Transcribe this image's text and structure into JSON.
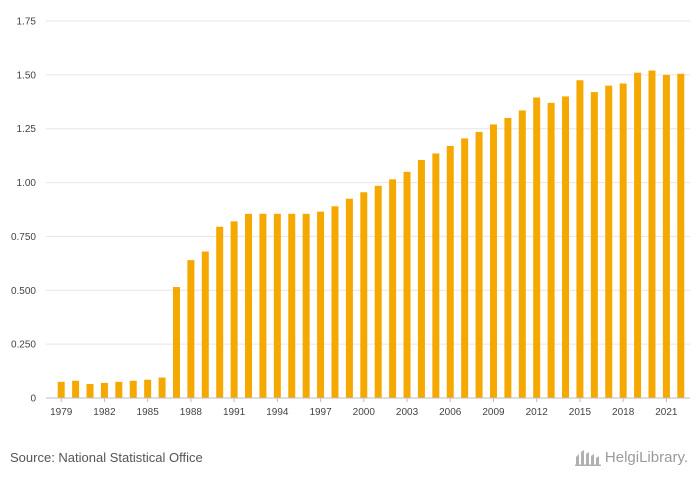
{
  "chart_data": {
    "type": "bar",
    "title": "",
    "xlabel": "",
    "ylabel": "",
    "ylim": [
      0,
      1.75
    ],
    "yticks": [
      "0",
      "0.250",
      "0.500",
      "0.750",
      "1.00",
      "1.25",
      "1.50",
      "1.75"
    ],
    "grid": true,
    "bar_color": "#f5a800",
    "categories": [
      "1979",
      "1980",
      "1981",
      "1982",
      "1983",
      "1984",
      "1985",
      "1986",
      "1987",
      "1988",
      "1989",
      "1990",
      "1991",
      "1992",
      "1993",
      "1994",
      "1995",
      "1996",
      "1997",
      "1998",
      "1999",
      "2000",
      "2001",
      "2002",
      "2003",
      "2004",
      "2005",
      "2006",
      "2007",
      "2008",
      "2009",
      "2010",
      "2011",
      "2012",
      "2013",
      "2014",
      "2015",
      "2016",
      "2017",
      "2018",
      "2019",
      "2020",
      "2021",
      "2022"
    ],
    "x_tick_labels": [
      "1979",
      "1982",
      "1985",
      "1988",
      "1991",
      "1994",
      "1997",
      "2000",
      "2003",
      "2006",
      "2009",
      "2012",
      "2015",
      "2018",
      "2021"
    ],
    "values": [
      0.075,
      0.08,
      0.065,
      0.07,
      0.075,
      0.08,
      0.085,
      0.095,
      0.515,
      0.64,
      0.68,
      0.795,
      0.82,
      0.855,
      0.855,
      0.855,
      0.855,
      0.855,
      0.865,
      0.89,
      0.925,
      0.955,
      0.985,
      1.015,
      1.05,
      1.105,
      1.135,
      1.17,
      1.205,
      1.235,
      1.27,
      1.3,
      1.335,
      1.395,
      1.37,
      1.4,
      1.475,
      1.42,
      1.45,
      1.46,
      1.51,
      1.52,
      1.5,
      1.505
    ]
  },
  "footer": {
    "source": "Source: National Statistical Office",
    "logo_text": "HelgiLibrary."
  }
}
